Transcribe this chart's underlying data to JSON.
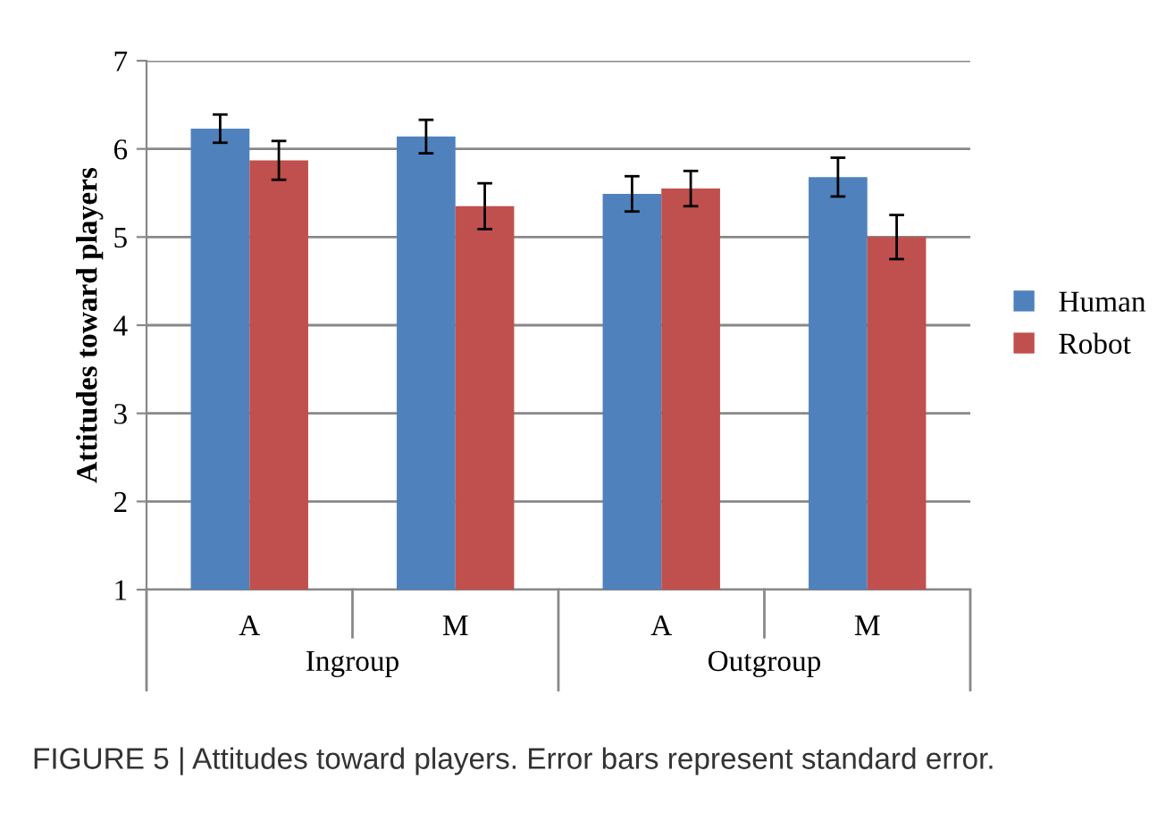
{
  "chart_data": {
    "type": "bar",
    "ylabel": "Attitudes toward players",
    "categories": [
      "A",
      "M",
      "A",
      "M"
    ],
    "series": [
      {
        "name": "Human",
        "color": "#4f81bd",
        "values": [
          6.23,
          6.14,
          5.49,
          5.68
        ],
        "errors": [
          0.16,
          0.19,
          0.2,
          0.22
        ]
      },
      {
        "name": "Robot",
        "color": "#c0504d",
        "values": [
          5.87,
          5.35,
          5.55,
          5.0
        ],
        "errors": [
          0.22,
          0.26,
          0.2,
          0.25
        ]
      }
    ],
    "ylim": [
      1,
      7
    ],
    "yticks": [
      1,
      2,
      3,
      4,
      5,
      6,
      7
    ],
    "grid": "y",
    "legend": "right",
    "annotations": [
      "Ingroup",
      "Outgroup",
      "FIGURE 5 | Attitudes toward players. Error bars represent standard error."
    ]
  }
}
